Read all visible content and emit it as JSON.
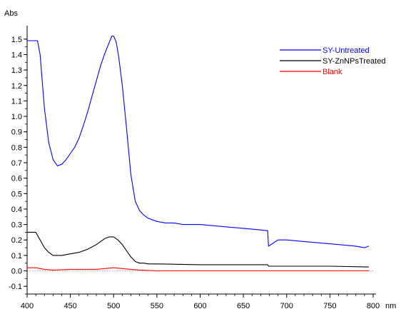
{
  "chart_data": {
    "type": "line",
    "title": "",
    "xlabel": "nm",
    "ylabel": "Abs",
    "xlim": [
      400,
      800
    ],
    "ylim": [
      -0.15,
      1.55
    ],
    "xticks": [
      400,
      450,
      500,
      550,
      600,
      650,
      700,
      750,
      800
    ],
    "xtick_labels": [
      "400",
      "450",
      "500",
      "550",
      "600",
      "650",
      "700",
      "750",
      "800"
    ],
    "yticks": [
      -0.1,
      0.0,
      0.1,
      0.2,
      0.3,
      0.4,
      0.5,
      0.6,
      0.7,
      0.8,
      0.9,
      1.0,
      1.1,
      1.2,
      1.3,
      1.4,
      1.5
    ],
    "ytick_labels": [
      "-0.1",
      "0.0",
      "0.1",
      "0.2",
      "0.3",
      "0.4",
      "0.5",
      "0.6",
      "0.7",
      "0.8",
      "0.9",
      "1.0",
      "1.1",
      "1.2",
      "1.3",
      "1.4",
      "1.5"
    ],
    "grid": false,
    "legend_position": "top-right",
    "series": [
      {
        "name": "SY-Untreated",
        "color": "#0000ff",
        "x": [
          400,
          412,
          415,
          420,
          425,
          430,
          435,
          440,
          445,
          450,
          455,
          460,
          465,
          470,
          475,
          480,
          485,
          490,
          495,
          498,
          500,
          503,
          506,
          510,
          515,
          520,
          525,
          530,
          535,
          540,
          550,
          560,
          570,
          580,
          600,
          620,
          640,
          660,
          678,
          679,
          690,
          700,
          720,
          740,
          760,
          780,
          790,
          795
        ],
        "y": [
          1.49,
          1.49,
          1.4,
          1.05,
          0.83,
          0.72,
          0.68,
          0.69,
          0.72,
          0.76,
          0.8,
          0.86,
          0.94,
          1.03,
          1.13,
          1.23,
          1.33,
          1.41,
          1.48,
          1.52,
          1.52,
          1.48,
          1.38,
          1.2,
          0.92,
          0.62,
          0.45,
          0.39,
          0.36,
          0.34,
          0.32,
          0.31,
          0.31,
          0.3,
          0.3,
          0.29,
          0.28,
          0.27,
          0.26,
          0.16,
          0.2,
          0.2,
          0.19,
          0.18,
          0.17,
          0.16,
          0.15,
          0.16
        ]
      },
      {
        "name": "SY-ZnNPsTreated",
        "color": "#000000",
        "x": [
          400,
          410,
          415,
          420,
          425,
          430,
          435,
          440,
          450,
          460,
          470,
          480,
          490,
          495,
          500,
          505,
          510,
          515,
          520,
          525,
          530,
          535,
          540,
          550,
          600,
          650,
          678,
          679,
          700,
          750,
          795
        ],
        "y": [
          0.25,
          0.25,
          0.2,
          0.15,
          0.12,
          0.1,
          0.1,
          0.1,
          0.11,
          0.12,
          0.14,
          0.17,
          0.21,
          0.22,
          0.22,
          0.2,
          0.17,
          0.13,
          0.09,
          0.06,
          0.05,
          0.05,
          0.045,
          0.045,
          0.04,
          0.04,
          0.04,
          0.03,
          0.03,
          0.03,
          0.025
        ]
      },
      {
        "name": "Blank",
        "color": "#ff0000",
        "x": [
          400,
          410,
          420,
          430,
          450,
          480,
          500,
          510,
          520,
          530,
          550,
          600,
          650,
          700,
          750,
          795
        ],
        "y": [
          0.02,
          0.02,
          0.01,
          0.005,
          0.01,
          0.01,
          0.02,
          0.015,
          0.01,
          0.005,
          0.0,
          0.0,
          0.0,
          0.0,
          0.0,
          0.0
        ]
      }
    ]
  }
}
